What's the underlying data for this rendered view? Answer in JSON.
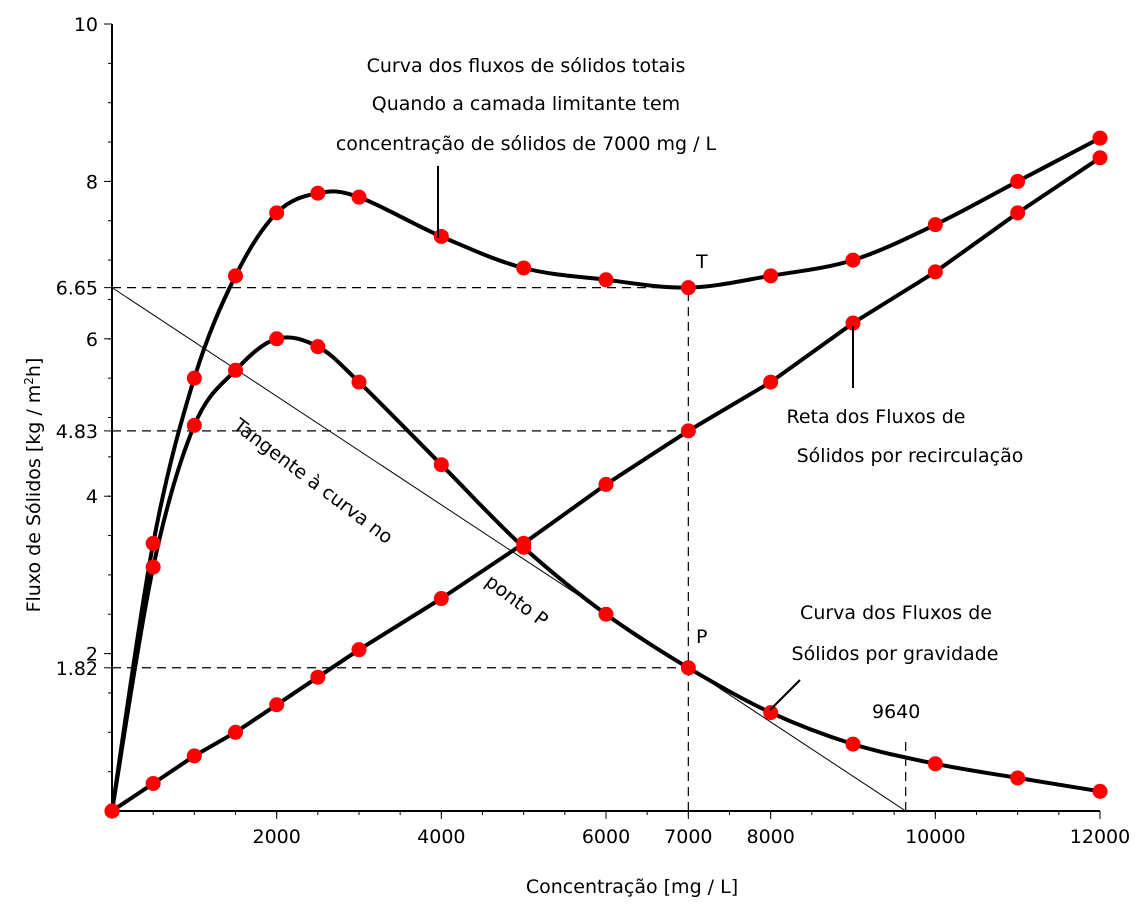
{
  "chart_data": {
    "type": "line",
    "xlabel": "Concentração [mg / L]",
    "ylabel_parts": [
      "Fluxo de Sólidos [kg / m",
      "2",
      "h]"
    ],
    "xlim": [
      0,
      12000
    ],
    "ylim": [
      0,
      10
    ],
    "grid": false,
    "x_ticks": [
      {
        "value": 2000,
        "label": "2000"
      },
      {
        "value": 4000,
        "label": "4000"
      },
      {
        "value": 6000,
        "label": "6000"
      },
      {
        "value": 7000,
        "label": "7000"
      },
      {
        "value": 8000,
        "label": "8000"
      },
      {
        "value": 10000,
        "label": "10000"
      },
      {
        "value": 12000,
        "label": "12000"
      }
    ],
    "y_ticks": [
      {
        "value": 1.82,
        "label": "1.82"
      },
      {
        "value": 2,
        "label": "2"
      },
      {
        "value": 4,
        "label": "4"
      },
      {
        "value": 4.83,
        "label": "4.83"
      },
      {
        "value": 6,
        "label": "6"
      },
      {
        "value": 6.65,
        "label": "6.65"
      },
      {
        "value": 8,
        "label": "8"
      },
      {
        "value": 10,
        "label": "10"
      }
    ],
    "series": [
      {
        "id": "total",
        "points": [
          [
            0,
            0
          ],
          [
            500,
            3.4
          ],
          [
            1000,
            5.5
          ],
          [
            1500,
            6.8
          ],
          [
            2000,
            7.6
          ],
          [
            2500,
            7.85
          ],
          [
            3000,
            7.8
          ],
          [
            4000,
            7.3
          ],
          [
            5000,
            6.9
          ],
          [
            6000,
            6.75
          ],
          [
            7000,
            6.65
          ],
          [
            8000,
            6.8
          ],
          [
            9000,
            7.0
          ],
          [
            10000,
            7.45
          ],
          [
            11000,
            8.0
          ],
          [
            12000,
            8.55
          ]
        ],
        "color": "#000000",
        "marker_color": "#ff0000"
      },
      {
        "id": "gravity",
        "points": [
          [
            0,
            0
          ],
          [
            500,
            3.1
          ],
          [
            1000,
            4.9
          ],
          [
            1500,
            5.6
          ],
          [
            2000,
            6.0
          ],
          [
            2500,
            5.9
          ],
          [
            3000,
            5.45
          ],
          [
            4000,
            4.4
          ],
          [
            5000,
            3.35
          ],
          [
            6000,
            2.5
          ],
          [
            7000,
            1.82
          ],
          [
            8000,
            1.25
          ],
          [
            9000,
            0.85
          ],
          [
            10000,
            0.6
          ],
          [
            11000,
            0.42
          ],
          [
            12000,
            0.25
          ]
        ],
        "color": "#000000",
        "marker_color": "#ff0000"
      },
      {
        "id": "recirculation",
        "points": [
          [
            0,
            0
          ],
          [
            500,
            0.35
          ],
          [
            1000,
            0.7
          ],
          [
            1500,
            1.0
          ],
          [
            2000,
            1.35
          ],
          [
            2500,
            1.7
          ],
          [
            3000,
            2.05
          ],
          [
            4000,
            2.7
          ],
          [
            5000,
            3.4
          ],
          [
            6000,
            4.15
          ],
          [
            7000,
            4.83
          ],
          [
            8000,
            5.45
          ],
          [
            9000,
            6.2
          ],
          [
            10000,
            6.85
          ],
          [
            11000,
            7.6
          ],
          [
            12000,
            8.3
          ]
        ],
        "color": "#000000",
        "marker_color": "#ff0000"
      }
    ],
    "tangent_line": {
      "from": [
        0,
        6.65
      ],
      "to": [
        9640,
        0
      ]
    },
    "reference_lines": {
      "horizontal": [
        {
          "y": 6.65,
          "x_end": 7000
        },
        {
          "y": 4.83,
          "x_end": 7000
        },
        {
          "y": 1.82,
          "x_end": 7000
        }
      ],
      "vertical": [
        {
          "x": 7000,
          "y_start": 0,
          "y_end": 6.65
        },
        {
          "x": 9640,
          "y_start": 0,
          "y_end": 0.95
        }
      ]
    },
    "annotations": {
      "total_curve_lines": [
        "Curva dos fluxos de sólidos totais",
        "Quando a camada limitante tem",
        "concentração de sólidos de 7000 mg / L"
      ],
      "recirc_lines": [
        "Reta dos Fluxos de",
        "Sólidos por recirculação"
      ],
      "gravity_lines": [
        "Curva dos Fluxos de",
        "Sólidos por gravidade"
      ],
      "tangent_lines": [
        "Tangente à curva no",
        "ponto P"
      ],
      "point_T": "T",
      "point_P": "P",
      "value_9640": "9640"
    }
  }
}
